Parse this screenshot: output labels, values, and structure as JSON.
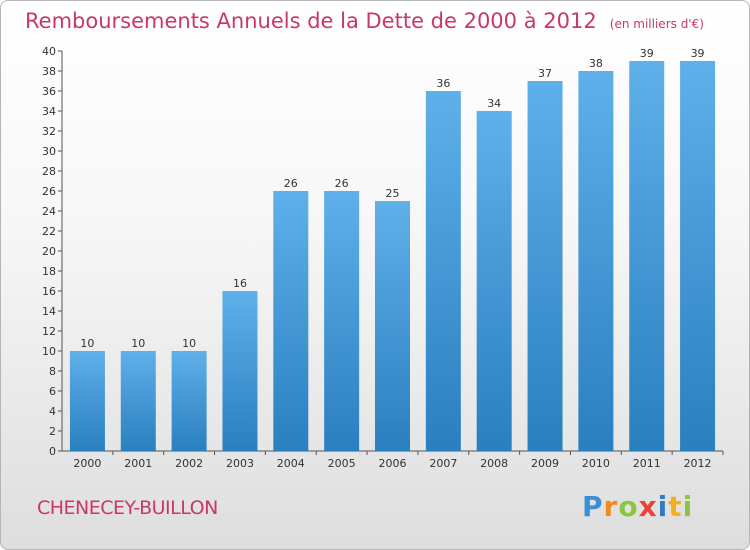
{
  "header": {
    "title": "Remboursements Annuels de la Dette de 2000 à 2012",
    "subtitle": "(en milliers d'€)"
  },
  "footer": {
    "place": "CHENECEY-BUILLON",
    "logo_text": "Proxiti"
  },
  "colors": {
    "title": "#c8376e",
    "bar_top": "#5fb0ea",
    "bar_bottom": "#2a7fbf",
    "axis": "#555555"
  },
  "chart_data": {
    "type": "bar",
    "categories": [
      "2000",
      "2001",
      "2002",
      "2003",
      "2004",
      "2005",
      "2006",
      "2007",
      "2008",
      "2009",
      "2010",
      "2011",
      "2012"
    ],
    "values": [
      10,
      10,
      10,
      16,
      26,
      26,
      25,
      36,
      34,
      37,
      38,
      39,
      39
    ],
    "title": "Remboursements Annuels de la Dette de 2000 à 2012",
    "subtitle": "(en milliers d'€)",
    "xlabel": "",
    "ylabel": "",
    "ylim": [
      0,
      40
    ],
    "ytick_step": 2,
    "grid": false,
    "legend": "none",
    "data_labels": true
  }
}
